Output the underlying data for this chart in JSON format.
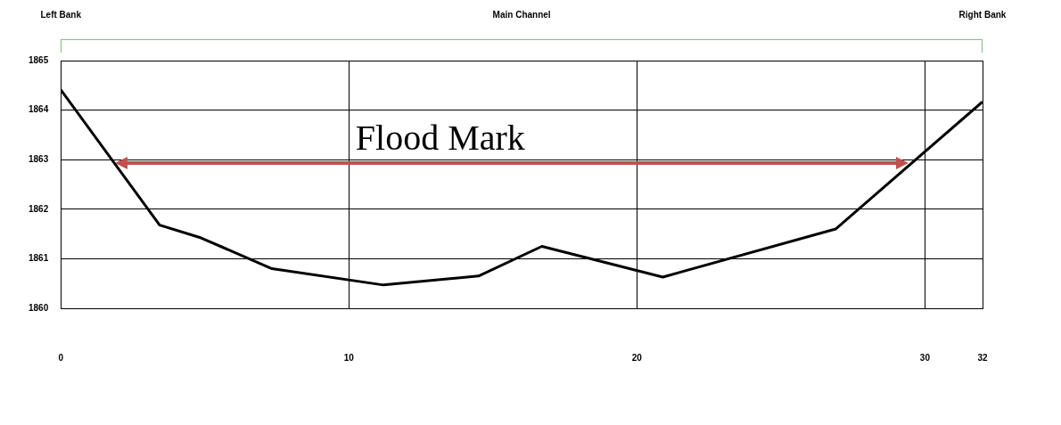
{
  "chart_data": {
    "type": "line",
    "x": [
      0,
      3.43,
      4.87,
      7.33,
      11.2,
      14.5,
      16.7,
      20.9,
      26.9,
      32
    ],
    "series": [
      {
        "color": "#000000",
        "values": [
          1864.41,
          1861.68,
          1861.42,
          1860.8,
          1860.47,
          1860.65,
          1861.25,
          1860.63,
          1861.6,
          1864.17
        ]
      },
      {
        "name": "Flood Mark",
        "color": "#c0504d",
        "x": [
          2,
          29.3
        ],
        "values": [
          1862.93,
          1862.93
        ]
      }
    ],
    "xlim": [
      0,
      32
    ],
    "xticks": [
      0,
      10,
      20,
      30,
      32
    ],
    "ylim": [
      1860,
      1865
    ],
    "yticks": [
      1860,
      1861,
      1862,
      1863,
      1864,
      1865
    ],
    "grid": true,
    "legend": false,
    "marker": "none",
    "line_style": "solid",
    "annotations": [
      "Left Bank",
      "Main Channel",
      "Right Bank"
    ]
  }
}
